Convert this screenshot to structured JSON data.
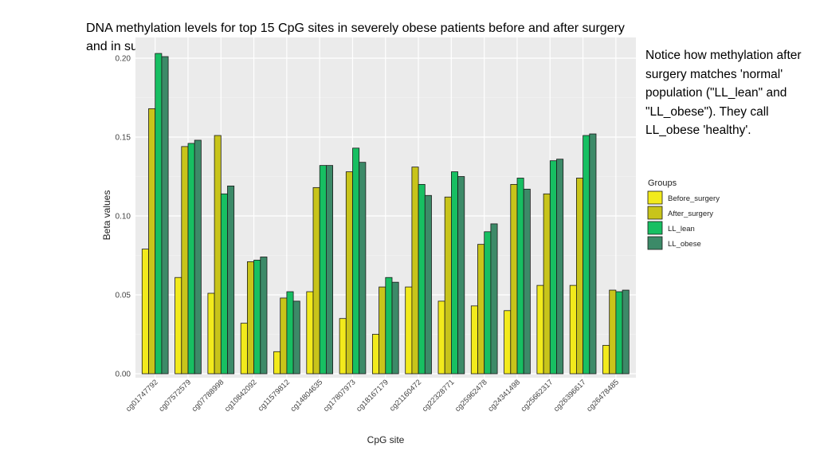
{
  "slide": {
    "title": "DNA methylation levels for top 15 CpG sites in severely obese patients before and after surgery and in sub-cohorts from Lifelines.",
    "note": "Notice how methylation after surgery matches 'normal' population (\"LL_lean\" and \"LL_obese\").  They call LL_obese 'healthy'."
  },
  "chart_data": {
    "type": "bar",
    "title": "",
    "xlabel": "CpG site",
    "ylabel": "Beta values",
    "ylim": [
      0,
      0.205
    ],
    "yticks": [
      0.0,
      0.05,
      0.1,
      0.15,
      0.2
    ],
    "ytick_labels": [
      "0.00",
      "0.05",
      "0.10",
      "0.15",
      "0.20"
    ],
    "grid": true,
    "legend_title": "Groups",
    "legend_position": "right",
    "categories": [
      "cg01747792",
      "cg07572579",
      "cg07788998",
      "cg10842092",
      "cg11579812",
      "cg14804635",
      "cg17807973",
      "cg18167179",
      "cg21160472",
      "cg22328771",
      "cg25962478",
      "cg24341498",
      "cg25662317",
      "cg26396617",
      "cg26478485"
    ],
    "series": [
      {
        "name": "Before_surgery",
        "color": "#f2ea1c",
        "values": [
          0.079,
          0.061,
          0.051,
          0.032,
          0.014,
          0.052,
          0.035,
          0.025,
          0.055,
          0.046,
          0.043,
          0.04,
          0.056,
          0.056,
          0.018
        ]
      },
      {
        "name": "After_surgery",
        "color": "#c8c41a",
        "values": [
          0.168,
          0.144,
          0.151,
          0.071,
          0.048,
          0.118,
          0.128,
          0.055,
          0.131,
          0.112,
          0.082,
          0.12,
          0.114,
          0.124,
          0.053
        ]
      },
      {
        "name": "LL_lean",
        "color": "#17bf62",
        "values": [
          0.203,
          0.146,
          0.114,
          0.072,
          0.052,
          0.132,
          0.143,
          0.061,
          0.12,
          0.128,
          0.09,
          0.124,
          0.135,
          0.151,
          0.052
        ]
      },
      {
        "name": "LL_obese",
        "color": "#3c8a68",
        "values": [
          0.201,
          0.148,
          0.119,
          0.074,
          0.046,
          0.132,
          0.134,
          0.058,
          0.113,
          0.125,
          0.095,
          0.117,
          0.136,
          0.152,
          0.053
        ]
      }
    ]
  }
}
